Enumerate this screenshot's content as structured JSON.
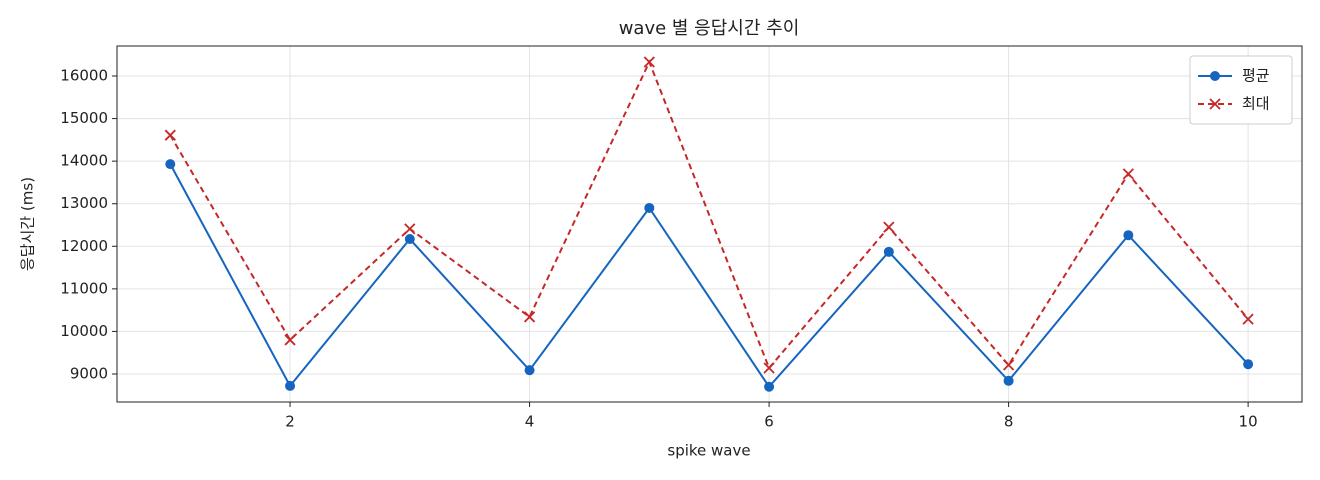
{
  "chart_data": {
    "type": "line",
    "title": "wave 별 응답시간 추이",
    "x_label": "spike wave",
    "y_label": "응답시간 (ms)",
    "x": [
      1,
      2,
      3,
      4,
      5,
      6,
      7,
      8,
      9,
      10
    ],
    "series": [
      {
        "name": "평균",
        "color": "#1565c0",
        "marker": "o",
        "linestyle": "solid",
        "values": [
          13930,
          8720,
          12170,
          9090,
          12900,
          8700,
          11870,
          8840,
          12260,
          9230
        ]
      },
      {
        "name": "최대",
        "color": "#c62828",
        "marker": "x",
        "linestyle": "dashed",
        "values": [
          14610,
          9800,
          12410,
          10340,
          16330,
          9140,
          12450,
          9210,
          13700,
          10290
        ]
      }
    ],
    "xlim": [
      0.555,
      10.45
    ],
    "ylim": [
      8342,
      16705
    ],
    "xticks": [
      2,
      4,
      6,
      8,
      10
    ],
    "yticks": [
      9000,
      10000,
      11000,
      12000,
      13000,
      14000,
      15000,
      16000
    ],
    "grid": true,
    "legend": "upper right"
  }
}
